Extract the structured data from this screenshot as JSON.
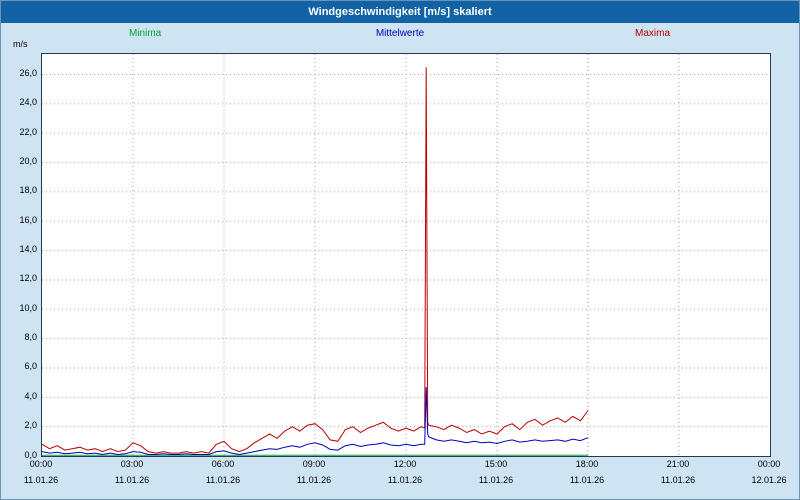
{
  "window": {
    "title": "Windgeschwindigkeit [m/s] skaliert"
  },
  "chart_data": {
    "type": "line",
    "title": "Windgeschwindigkeit [m/s] skaliert",
    "ylabel": "m/s",
    "ylim": [
      0,
      27.4
    ],
    "grid": true,
    "legend_position": "top",
    "x_unit": "minutes_after_00:00_11.01.26",
    "x_axis_range_minutes": [
      0,
      1440
    ],
    "data_ends_at_minute": 1080,
    "xticks": [
      {
        "time": "00:00",
        "date": "11.01.26",
        "min": 0
      },
      {
        "time": "03:00",
        "date": "11.01.26",
        "min": 180
      },
      {
        "time": "06:00",
        "date": "11.01.26",
        "min": 360
      },
      {
        "time": "09:00",
        "date": "11.01.26",
        "min": 540
      },
      {
        "time": "12:00",
        "date": "11.01.26",
        "min": 720
      },
      {
        "time": "15:00",
        "date": "11.01.26",
        "min": 900
      },
      {
        "time": "18:00",
        "date": "11.01.26",
        "min": 1080
      },
      {
        "time": "21:00",
        "date": "11.01.26",
        "min": 1260
      },
      {
        "time": "00:00",
        "date": "12.01.26",
        "min": 1440
      }
    ],
    "ytick_values": [
      0,
      2,
      4,
      6,
      8,
      10,
      12,
      14,
      16,
      18,
      20,
      22,
      24,
      26
    ],
    "ytick_labels": [
      "0,0",
      "2,0",
      "4,0",
      "6,0",
      "8,0",
      "10,0",
      "12,0",
      "14,0",
      "16,0",
      "18,0",
      "20,0",
      "22,0",
      "24,0",
      "26,0"
    ],
    "x": [
      0,
      15,
      30,
      45,
      60,
      75,
      90,
      105,
      120,
      135,
      150,
      165,
      180,
      195,
      210,
      225,
      240,
      255,
      270,
      285,
      300,
      315,
      330,
      345,
      360,
      375,
      390,
      405,
      420,
      435,
      450,
      465,
      480,
      495,
      510,
      525,
      540,
      555,
      570,
      585,
      600,
      615,
      630,
      645,
      660,
      675,
      690,
      705,
      720,
      735,
      750,
      757,
      760,
      763,
      765,
      780,
      795,
      810,
      825,
      840,
      855,
      870,
      885,
      900,
      915,
      930,
      945,
      960,
      975,
      990,
      1005,
      1020,
      1035,
      1050,
      1065,
      1080
    ],
    "series": [
      {
        "name": "Minima",
        "color": "#00a33c",
        "values": [
          0,
          0,
          0,
          0,
          0,
          0,
          0,
          0,
          0,
          0,
          0,
          0,
          0,
          0,
          0,
          0,
          0,
          0,
          0,
          0,
          0,
          0,
          0,
          0,
          0,
          0,
          0,
          0,
          0,
          0,
          0,
          0,
          0,
          0,
          0,
          0,
          0,
          0,
          0,
          0,
          0,
          0,
          0,
          0,
          0,
          0,
          0,
          0,
          0,
          0,
          0,
          0,
          0,
          0,
          0,
          0,
          0,
          0,
          0,
          0,
          0,
          0,
          0,
          0,
          0,
          0,
          0,
          0,
          0,
          0,
          0,
          0,
          0,
          0,
          0,
          0
        ]
      },
      {
        "name": "Maxima",
        "color": "#bb0000",
        "values": [
          0.8,
          0.5,
          0.7,
          0.4,
          0.5,
          0.6,
          0.4,
          0.5,
          0.3,
          0.5,
          0.3,
          0.4,
          0.9,
          0.7,
          0.3,
          0.2,
          0.3,
          0.2,
          0.2,
          0.3,
          0.2,
          0.3,
          0.2,
          0.8,
          1.0,
          0.5,
          0.3,
          0.5,
          0.9,
          1.2,
          1.5,
          1.2,
          1.7,
          2.0,
          1.7,
          2.1,
          2.2,
          1.8,
          1.1,
          1.0,
          1.8,
          2.0,
          1.6,
          1.9,
          2.1,
          2.3,
          1.9,
          1.7,
          1.9,
          1.7,
          2.0,
          1.9,
          26.5,
          2.3,
          2.1,
          2.0,
          1.8,
          2.1,
          1.9,
          1.6,
          1.8,
          1.5,
          1.7,
          1.5,
          2.0,
          2.2,
          1.8,
          2.3,
          2.5,
          2.1,
          2.4,
          2.6,
          2.3,
          2.7,
          2.4,
          3.1
        ]
      },
      {
        "name": "Mittelwerte",
        "color": "#0000bb",
        "values": [
          0.3,
          0.2,
          0.25,
          0.15,
          0.2,
          0.25,
          0.15,
          0.2,
          0.1,
          0.2,
          0.1,
          0.15,
          0.3,
          0.25,
          0.1,
          0.1,
          0.15,
          0.1,
          0.1,
          0.15,
          0.1,
          0.1,
          0.1,
          0.3,
          0.35,
          0.2,
          0.1,
          0.2,
          0.3,
          0.4,
          0.5,
          0.45,
          0.6,
          0.7,
          0.6,
          0.8,
          0.9,
          0.75,
          0.45,
          0.4,
          0.7,
          0.8,
          0.65,
          0.75,
          0.8,
          0.9,
          0.75,
          0.7,
          0.8,
          0.7,
          0.8,
          0.8,
          4.7,
          1.5,
          1.3,
          1.1,
          1.0,
          1.1,
          1.0,
          0.9,
          1.0,
          0.9,
          0.95,
          0.85,
          1.0,
          1.1,
          0.95,
          1.0,
          1.1,
          1.0,
          1.05,
          1.1,
          1.0,
          1.15,
          1.05,
          1.25
        ]
      }
    ],
    "legend_labels": {
      "minima": "Minima",
      "mittelwerte": "Mittelwerte",
      "maxima": "Maxima"
    },
    "colors": {
      "background": "#cfe4f2",
      "titlebar": "#1263a5",
      "plot_background": "#ffffff",
      "grid": "#a6a6a6",
      "minima": "#00a33c",
      "mittelwerte": "#0000bb",
      "maxima": "#bb0000"
    }
  }
}
